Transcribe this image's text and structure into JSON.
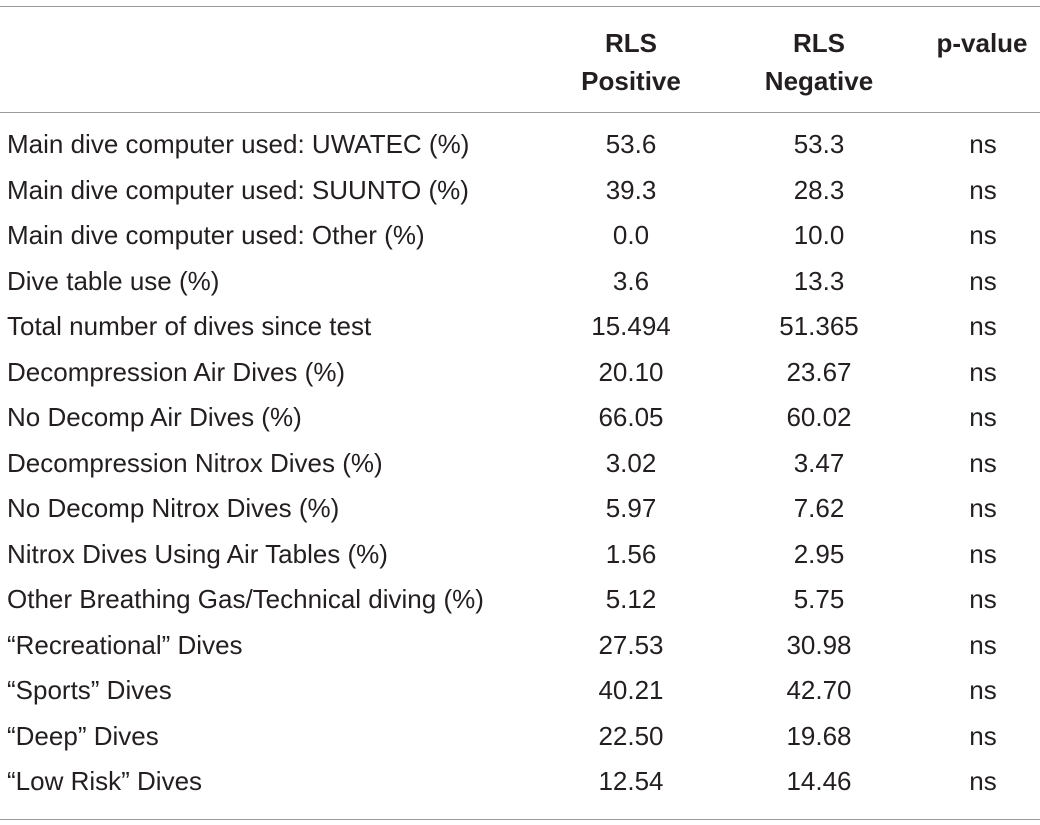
{
  "header": {
    "columns": [
      {
        "line1": "RLS",
        "line2": "Positive"
      },
      {
        "line1": "RLS",
        "line2": "Negative"
      },
      {
        "line1": "p-value",
        "line2": ""
      }
    ]
  },
  "rows": [
    {
      "label": "Main dive computer used: UWATEC (%)",
      "positive": "53.6",
      "negative": "53.3",
      "p": "ns"
    },
    {
      "label": "Main dive computer used: SUUNTO (%)",
      "positive": "39.3",
      "negative": "28.3",
      "p": "ns"
    },
    {
      "label": "Main dive computer used: Other (%)",
      "positive": "0.0",
      "negative": "10.0",
      "p": "ns"
    },
    {
      "label": "Dive table use (%)",
      "positive": "3.6",
      "negative": "13.3",
      "p": "ns"
    },
    {
      "label": "Total number of dives since test",
      "positive": "15.494",
      "negative": "51.365",
      "p": "ns"
    },
    {
      "label": "Decompression Air Dives (%)",
      "positive": "20.10",
      "negative": "23.67",
      "p": "ns"
    },
    {
      "label": "No Decomp Air Dives (%)",
      "positive": "66.05",
      "negative": "60.02",
      "p": "ns"
    },
    {
      "label": "Decompression Nitrox Dives (%)",
      "positive": "3.02",
      "negative": "3.47",
      "p": "ns"
    },
    {
      "label": "No Decomp Nitrox Dives (%)",
      "positive": "5.97",
      "negative": "7.62",
      "p": "ns"
    },
    {
      "label": "Nitrox Dives Using Air Tables (%)",
      "positive": "1.56",
      "negative": "2.95",
      "p": "ns"
    },
    {
      "label": "Other Breathing Gas/Technical diving (%)",
      "positive": "5.12",
      "negative": "5.75",
      "p": "ns"
    },
    {
      "label": "“Recreational” Dives",
      "positive": "27.53",
      "negative": "30.98",
      "p": "ns"
    },
    {
      "label": "“Sports” Dives",
      "positive": "40.21",
      "negative": "42.70",
      "p": "ns"
    },
    {
      "label": "“Deep” Dives",
      "positive": "22.50",
      "negative": "19.68",
      "p": "ns"
    },
    {
      "label": "“Low Risk” Dives",
      "positive": "12.54",
      "negative": "14.46",
      "p": "ns"
    }
  ]
}
